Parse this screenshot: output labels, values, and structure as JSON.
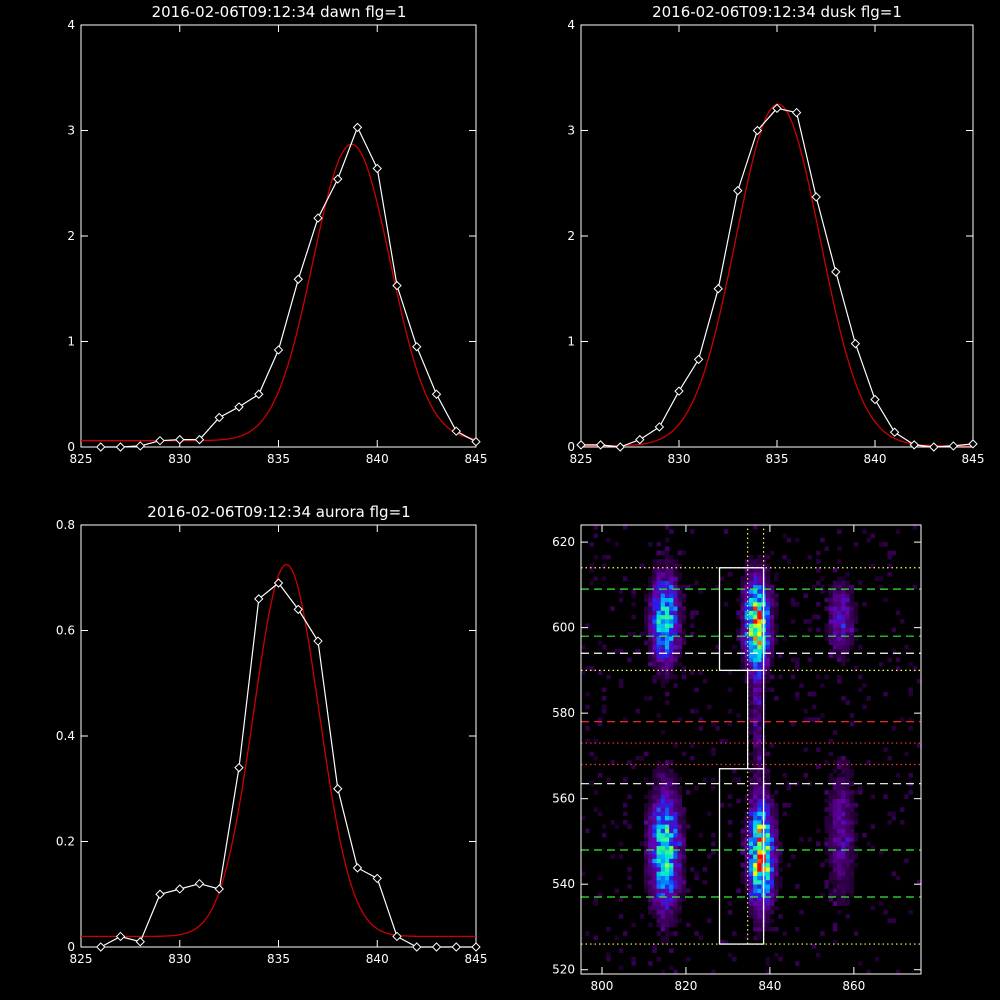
{
  "chart_data": [
    {
      "type": "line",
      "title": "2016-02-06T09:12:34 dawn flg=1",
      "xlim": [
        825,
        845
      ],
      "ylim": [
        0,
        4
      ],
      "xticks": [
        825,
        830,
        835,
        840,
        845
      ],
      "yticks": [
        0,
        1,
        2,
        3,
        4
      ],
      "series": [
        {
          "kind": "data",
          "color": "#ffffff",
          "marker": "diamond",
          "x": [
            826,
            827,
            828,
            829,
            830,
            831,
            832,
            833,
            834,
            835,
            836,
            837,
            838,
            839,
            840,
            841,
            842,
            843,
            844,
            845
          ],
          "y": [
            0.0,
            0.0,
            0.01,
            0.06,
            0.07,
            0.07,
            0.28,
            0.38,
            0.5,
            0.92,
            1.59,
            2.17,
            2.54,
            3.03,
            2.64,
            1.53,
            0.95,
            0.5,
            0.15,
            0.05
          ]
        },
        {
          "kind": "fit",
          "color": "#cc0000",
          "gauss": {
            "amp": 2.81,
            "center": 838.7,
            "sigma": 1.95,
            "base": 0.06
          }
        }
      ]
    },
    {
      "type": "line",
      "title": "2016-02-06T09:12:34 dusk flg=1",
      "xlim": [
        825,
        845
      ],
      "ylim": [
        0,
        4
      ],
      "xticks": [
        825,
        830,
        835,
        840,
        845
      ],
      "yticks": [
        0,
        1,
        2,
        3,
        4
      ],
      "series": [
        {
          "kind": "data",
          "color": "#ffffff",
          "marker": "diamond",
          "x": [
            825,
            826,
            827,
            828,
            829,
            830,
            831,
            832,
            833,
            834,
            835,
            836,
            837,
            838,
            839,
            840,
            841,
            842,
            843,
            844,
            845
          ],
          "y": [
            0.02,
            0.02,
            0.0,
            0.07,
            0.19,
            0.53,
            0.83,
            1.5,
            2.43,
            3.0,
            3.21,
            3.17,
            2.37,
            1.66,
            0.98,
            0.45,
            0.14,
            0.02,
            0.0,
            0.01,
            0.03
          ]
        },
        {
          "kind": "fit",
          "color": "#cc0000",
          "gauss": {
            "amp": 3.24,
            "center": 835.05,
            "sigma": 2.15,
            "base": 0.01
          }
        }
      ]
    },
    {
      "type": "line",
      "title": "2016-02-06T09:12:34 aurora flg=1",
      "xlim": [
        825,
        845
      ],
      "ylim": [
        0,
        0.8
      ],
      "xticks": [
        825,
        830,
        835,
        840,
        845
      ],
      "yticks": [
        0.0,
        0.2,
        0.4,
        0.6,
        0.8
      ],
      "series": [
        {
          "kind": "data",
          "color": "#ffffff",
          "marker": "diamond",
          "x": [
            826,
            827,
            828,
            829,
            830,
            831,
            832,
            833,
            834,
            835,
            836,
            837,
            838,
            839,
            840,
            841,
            842,
            843,
            844,
            845
          ],
          "y": [
            0.0,
            0.02,
            0.01,
            0.1,
            0.11,
            0.12,
            0.11,
            0.34,
            0.66,
            0.69,
            0.64,
            0.58,
            0.3,
            0.15,
            0.13,
            0.02,
            0.0,
            0.0,
            0.0,
            0.0
          ]
        },
        {
          "kind": "fit",
          "color": "#cc0000",
          "gauss": {
            "amp": 0.705,
            "center": 835.4,
            "sigma": 1.65,
            "base": 0.02
          }
        }
      ]
    },
    {
      "type": "heatmap",
      "xlim": [
        795,
        876
      ],
      "ylim": [
        519,
        624
      ],
      "xticks": [
        800,
        820,
        840,
        860
      ],
      "yticks": [
        520,
        540,
        560,
        580,
        600,
        620
      ],
      "colormap": [
        "#000000",
        "#3a0057",
        "#6600aa",
        "#2222ee",
        "#0099ff",
        "#00e0e0",
        "#40ff80",
        "#ffff00",
        "#ff0000"
      ],
      "sources": [
        {
          "x": 815,
          "y": 602,
          "sx": 2.2,
          "sy": 7.0,
          "amp": 0.72
        },
        {
          "x": 815,
          "y": 548,
          "sx": 2.4,
          "sy": 9.5,
          "amp": 0.72
        },
        {
          "x": 837,
          "y": 601,
          "sx": 2.0,
          "sy": 7.0,
          "amp": 0.95
        },
        {
          "x": 838,
          "y": 547,
          "sx": 2.0,
          "sy": 8.0,
          "amp": 1.0
        },
        {
          "x": 857,
          "y": 602,
          "sx": 2.2,
          "sy": 6.0,
          "amp": 0.3
        },
        {
          "x": 857,
          "y": 552,
          "sx": 2.3,
          "sy": 11.0,
          "amp": 0.25
        },
        {
          "x": 837,
          "y": 578,
          "sx": 1.2,
          "sy": 12.0,
          "amp": 0.18
        }
      ],
      "overlays": {
        "boxes": [
          {
            "x": [
              828,
              838.5
            ],
            "y": [
              526,
              567
            ],
            "color": "#ffffff"
          },
          {
            "x": [
              828,
              838.5
            ],
            "y": [
              590,
              614
            ],
            "color": "#ffffff"
          }
        ],
        "vlines": [
          {
            "x": 834.7,
            "y": [
              526,
              624
            ],
            "color": "#ffff66",
            "style": "dotted"
          },
          {
            "x": 838.5,
            "y": [
              526,
              624
            ],
            "color": "#ffff66",
            "style": "dotted"
          },
          {
            "x": 834.7,
            "y": [
              567,
              590
            ],
            "color": "#ffffff",
            "style": "solid"
          },
          {
            "x": 838.5,
            "y": [
              567,
              590
            ],
            "color": "#ffffff",
            "style": "solid"
          }
        ],
        "hlines": [
          {
            "y": 526,
            "color": "#ffff66",
            "style": "dotted"
          },
          {
            "y": 537,
            "color": "#33ee33",
            "style": "dashed"
          },
          {
            "y": 548,
            "color": "#33ee33",
            "style": "dashed"
          },
          {
            "y": 563.5,
            "color": "#ffffff",
            "style": "dashed"
          },
          {
            "y": 568,
            "color": "#ff3333",
            "style": "dotted"
          },
          {
            "y": 573,
            "color": "#ff3333",
            "style": "dotted"
          },
          {
            "y": 578,
            "color": "#ff3333",
            "style": "dashed"
          },
          {
            "y": 590,
            "color": "#ffff66",
            "style": "dotted"
          },
          {
            "y": 594,
            "color": "#ffffff",
            "style": "dashed"
          },
          {
            "y": 598,
            "color": "#33ee33",
            "style": "dashed"
          },
          {
            "y": 609,
            "color": "#33ee33",
            "style": "dashed"
          },
          {
            "y": 614,
            "color": "#ffff66",
            "style": "dotted"
          }
        ]
      }
    }
  ]
}
